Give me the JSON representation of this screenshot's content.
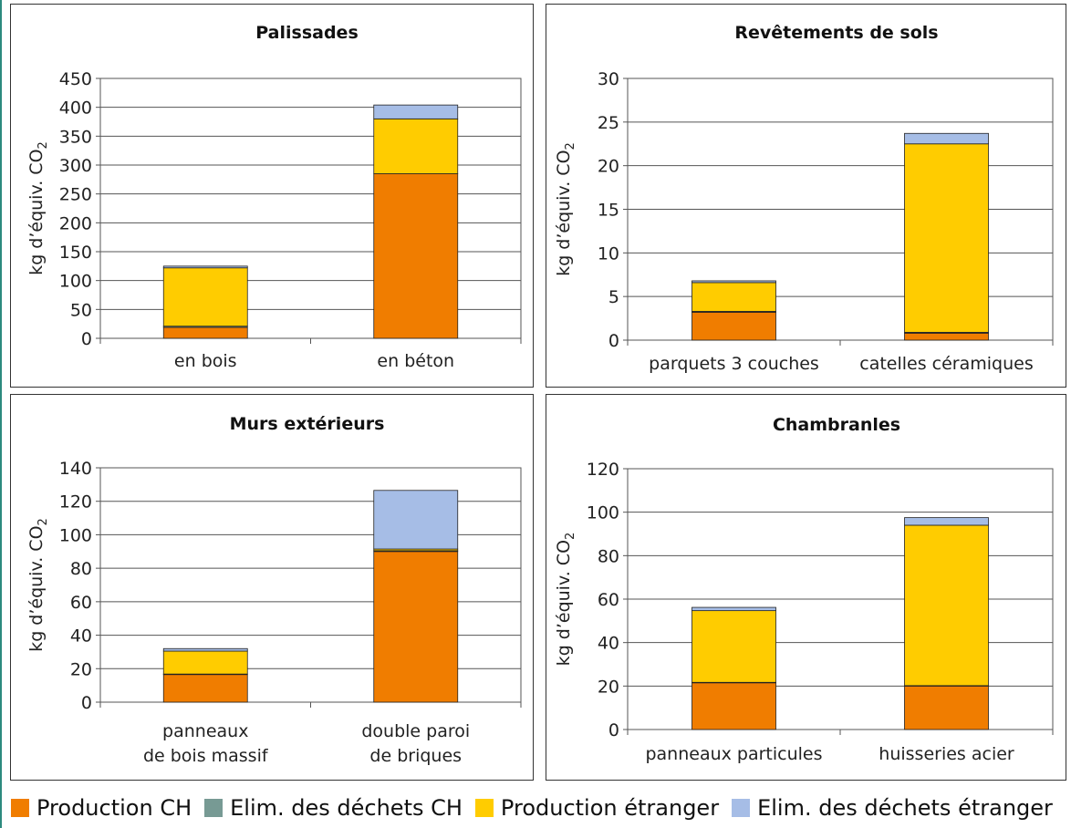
{
  "colors": {
    "production_ch": "#f07d00",
    "elim_ch": "#779a94",
    "production_etranger": "#ffcc00",
    "elim_etranger": "#a6bde6",
    "frame": "#2d8a7e"
  },
  "legend": [
    {
      "label": "Production CH",
      "color": "#f07d00"
    },
    {
      "label": "Elim. des déchets CH",
      "color": "#779a94"
    },
    {
      "label": "Production étranger",
      "color": "#ffcc00"
    },
    {
      "label": "Elim. des déchets étranger",
      "color": "#a6bde6"
    }
  ],
  "chart_data": [
    {
      "type": "bar",
      "stacked": true,
      "title": "Palissades",
      "ylabel": "kg d’équiv. CO2",
      "ylim": [
        0,
        450
      ],
      "yticks": [
        0,
        50,
        100,
        150,
        200,
        250,
        300,
        350,
        400,
        450
      ],
      "grid": true,
      "categories": [
        [
          "en bois"
        ],
        [
          "en béton"
        ]
      ],
      "series": [
        {
          "name": "Production CH",
          "values": [
            19,
            285
          ]
        },
        {
          "name": "Elim. des déchets CH",
          "values": [
            2,
            0
          ]
        },
        {
          "name": "Production étranger",
          "values": [
            101,
            95
          ]
        },
        {
          "name": "Elim. des déchets étranger",
          "values": [
            3,
            24
          ]
        }
      ]
    },
    {
      "type": "bar",
      "stacked": true,
      "title": "Revêtements de sols",
      "ylabel": "kg d’équiv. CO2",
      "ylim": [
        0,
        30
      ],
      "yticks": [
        0,
        5,
        10,
        15,
        20,
        25,
        30
      ],
      "grid": true,
      "categories": [
        [
          "parquets 3 couches"
        ],
        [
          "catelles céramiques"
        ]
      ],
      "series": [
        {
          "name": "Production CH",
          "values": [
            3.2,
            0.8
          ]
        },
        {
          "name": "Elim. des déchets CH",
          "values": [
            0.1,
            0.1
          ]
        },
        {
          "name": "Production étranger",
          "values": [
            3.3,
            21.6
          ]
        },
        {
          "name": "Elim. des déchets étranger",
          "values": [
            0.2,
            1.2
          ]
        }
      ]
    },
    {
      "type": "bar",
      "stacked": true,
      "title": "Murs extérieurs",
      "ylabel": "kg d’équiv. CO2",
      "ylim": [
        0,
        140
      ],
      "yticks": [
        0,
        20,
        40,
        60,
        80,
        100,
        120,
        140
      ],
      "grid": true,
      "categories": [
        [
          "panneaux",
          "de bois massif"
        ],
        [
          "double paroi",
          "de briques"
        ]
      ],
      "series": [
        {
          "name": "Production CH",
          "values": [
            16.5,
            90
          ]
        },
        {
          "name": "Elim. des déchets CH",
          "values": [
            0.3,
            0.5
          ]
        },
        {
          "name": "Production étranger",
          "values": [
            13.7,
            1
          ]
        },
        {
          "name": "Elim. des déchets étranger",
          "values": [
            1.5,
            35
          ]
        }
      ]
    },
    {
      "type": "bar",
      "stacked": true,
      "title": "Chambranles",
      "ylabel": "kg d’équiv. CO2",
      "ylim": [
        0,
        120
      ],
      "yticks": [
        0,
        20,
        40,
        60,
        80,
        100,
        120
      ],
      "grid": true,
      "categories": [
        [
          "panneaux particules"
        ],
        [
          "huisseries acier"
        ]
      ],
      "series": [
        {
          "name": "Production CH",
          "values": [
            21.5,
            20
          ]
        },
        {
          "name": "Elim. des déchets CH",
          "values": [
            0.2,
            0.2
          ]
        },
        {
          "name": "Production étranger",
          "values": [
            33,
            73.8
          ]
        },
        {
          "name": "Elim. des déchets étranger",
          "values": [
            1.5,
            3.5
          ]
        }
      ]
    }
  ]
}
